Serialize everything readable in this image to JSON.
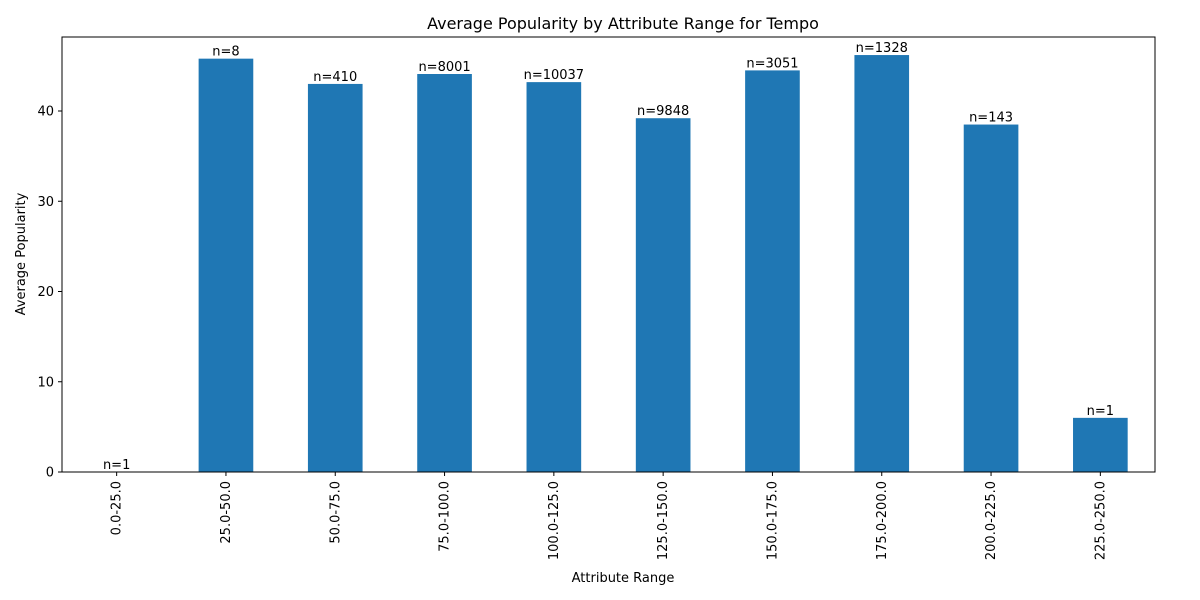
{
  "chart_data": {
    "type": "bar",
    "title": "Average Popularity by Attribute Range for Tempo",
    "xlabel": "Attribute Range",
    "ylabel": "Average Popularity",
    "categories": [
      "0.0-25.0",
      "25.0-50.0",
      "50.0-75.0",
      "75.0-100.0",
      "100.0-125.0",
      "125.0-150.0",
      "150.0-175.0",
      "175.0-200.0",
      "200.0-225.0",
      "225.0-250.0"
    ],
    "series": [
      {
        "values": [
          0,
          45.8,
          43.0,
          44.1,
          43.2,
          39.2,
          44.5,
          46.2,
          38.5,
          6.0
        ]
      }
    ],
    "data_labels": [
      "n=1",
      "n=8",
      "n=410",
      "n=8001",
      "n=10037",
      "n=9848",
      "n=3051",
      "n=1328",
      "n=143",
      "n=1"
    ],
    "ylim": [
      0,
      48.2
    ],
    "yticks": [
      0,
      10,
      20,
      30,
      40
    ],
    "grid": false,
    "legend": "none",
    "bar_color": "#1f77b4",
    "x_tick_rotation": "vertical"
  }
}
